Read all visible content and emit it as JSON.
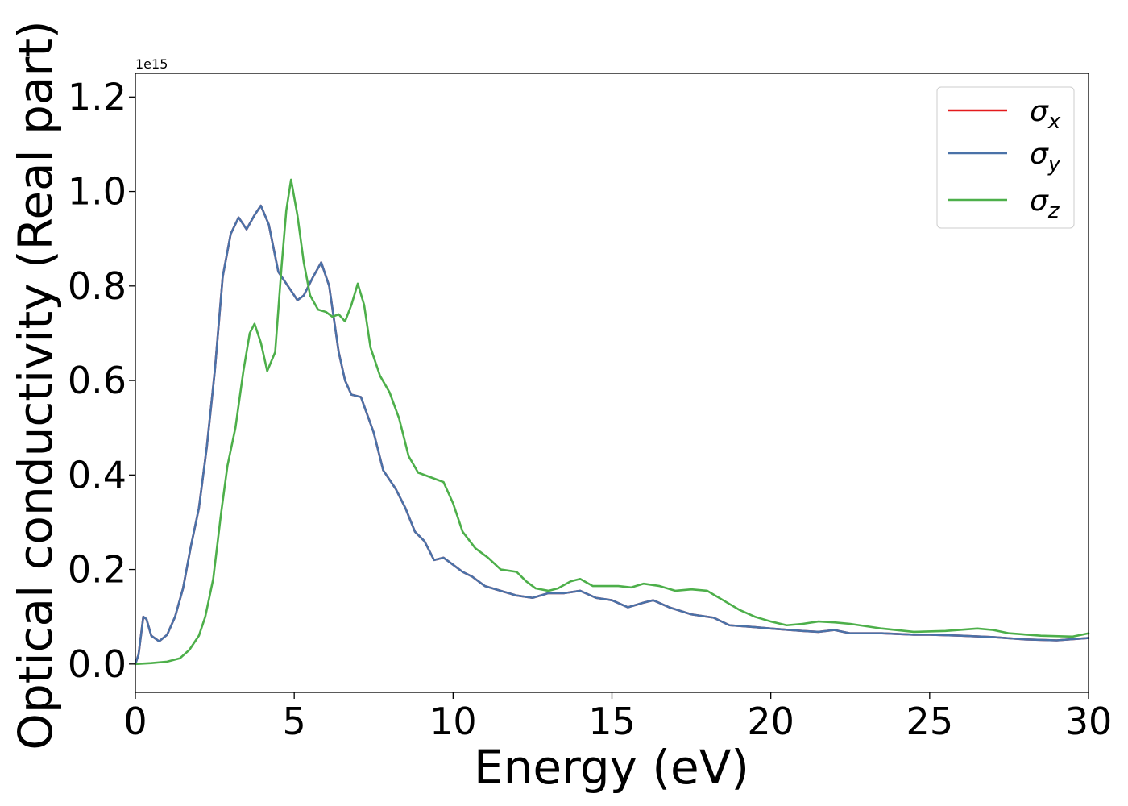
{
  "chart_data": {
    "type": "line",
    "xlabel": "Energy (eV)",
    "ylabel": "Optical conductivity (Real part)",
    "y_offset_label": "1e15",
    "xlim": [
      0,
      30
    ],
    "ylim": [
      -0.06,
      1.25
    ],
    "x_ticks": [
      0,
      5,
      10,
      15,
      20,
      25,
      30
    ],
    "x_tick_labels": [
      "0",
      "5",
      "10",
      "15",
      "20",
      "25",
      "30"
    ],
    "y_ticks": [
      0.0,
      0.2,
      0.4,
      0.6,
      0.8,
      1.0,
      1.2
    ],
    "y_tick_labels": [
      "0.0",
      "0.2",
      "0.4",
      "0.6",
      "0.8",
      "1.0",
      "1.2"
    ],
    "grid": false,
    "legend_position": "top-right",
    "series": [
      {
        "name": "σ",
        "subscript": "x",
        "color": "#e41a1c",
        "points": [
          [
            0,
            0
          ],
          [
            0.1,
            0.02
          ],
          [
            0.25,
            0.1
          ],
          [
            0.35,
            0.095
          ],
          [
            0.5,
            0.06
          ],
          [
            0.75,
            0.048
          ],
          [
            1.0,
            0.062
          ],
          [
            1.25,
            0.1
          ],
          [
            1.5,
            0.16
          ],
          [
            1.75,
            0.25
          ],
          [
            2.0,
            0.33
          ],
          [
            2.25,
            0.46
          ],
          [
            2.5,
            0.62
          ],
          [
            2.75,
            0.82
          ],
          [
            3.0,
            0.91
          ],
          [
            3.25,
            0.945
          ],
          [
            3.5,
            0.92
          ],
          [
            3.75,
            0.95
          ],
          [
            3.95,
            0.97
          ],
          [
            4.2,
            0.93
          ],
          [
            4.5,
            0.83
          ],
          [
            4.8,
            0.8
          ],
          [
            5.1,
            0.77
          ],
          [
            5.3,
            0.78
          ],
          [
            5.6,
            0.82
          ],
          [
            5.85,
            0.85
          ],
          [
            6.1,
            0.8
          ],
          [
            6.4,
            0.66
          ],
          [
            6.6,
            0.6
          ],
          [
            6.8,
            0.57
          ],
          [
            7.1,
            0.565
          ],
          [
            7.5,
            0.49
          ],
          [
            7.8,
            0.41
          ],
          [
            8.2,
            0.37
          ],
          [
            8.5,
            0.33
          ],
          [
            8.8,
            0.28
          ],
          [
            9.1,
            0.26
          ],
          [
            9.4,
            0.22
          ],
          [
            9.7,
            0.225
          ],
          [
            10.0,
            0.21
          ],
          [
            10.3,
            0.195
          ],
          [
            10.6,
            0.185
          ],
          [
            11.0,
            0.165
          ],
          [
            11.5,
            0.155
          ],
          [
            12.0,
            0.145
          ],
          [
            12.5,
            0.14
          ],
          [
            13.0,
            0.15
          ],
          [
            13.5,
            0.15
          ],
          [
            14.0,
            0.155
          ],
          [
            14.5,
            0.14
          ],
          [
            15.0,
            0.135
          ],
          [
            15.5,
            0.12
          ],
          [
            16.0,
            0.13
          ],
          [
            16.3,
            0.135
          ],
          [
            16.8,
            0.12
          ],
          [
            17.5,
            0.105
          ],
          [
            18.2,
            0.098
          ],
          [
            18.7,
            0.082
          ],
          [
            19.5,
            0.078
          ],
          [
            20.0,
            0.075
          ],
          [
            21.0,
            0.07
          ],
          [
            21.5,
            0.068
          ],
          [
            22.0,
            0.072
          ],
          [
            22.5,
            0.065
          ],
          [
            23.5,
            0.065
          ],
          [
            24.5,
            0.062
          ],
          [
            25.0,
            0.062
          ],
          [
            26.0,
            0.06
          ],
          [
            27.0,
            0.057
          ],
          [
            28.0,
            0.052
          ],
          [
            29.0,
            0.05
          ],
          [
            30.0,
            0.055
          ]
        ]
      },
      {
        "name": "σ",
        "subscript": "y",
        "color": "#4a72a8",
        "points": [
          [
            0,
            0
          ],
          [
            0.1,
            0.02
          ],
          [
            0.25,
            0.1
          ],
          [
            0.35,
            0.095
          ],
          [
            0.5,
            0.06
          ],
          [
            0.75,
            0.048
          ],
          [
            1.0,
            0.062
          ],
          [
            1.25,
            0.1
          ],
          [
            1.5,
            0.16
          ],
          [
            1.75,
            0.25
          ],
          [
            2.0,
            0.33
          ],
          [
            2.25,
            0.46
          ],
          [
            2.5,
            0.62
          ],
          [
            2.75,
            0.82
          ],
          [
            3.0,
            0.91
          ],
          [
            3.25,
            0.945
          ],
          [
            3.5,
            0.92
          ],
          [
            3.75,
            0.95
          ],
          [
            3.95,
            0.97
          ],
          [
            4.2,
            0.93
          ],
          [
            4.5,
            0.83
          ],
          [
            4.8,
            0.8
          ],
          [
            5.1,
            0.77
          ],
          [
            5.3,
            0.78
          ],
          [
            5.6,
            0.82
          ],
          [
            5.85,
            0.85
          ],
          [
            6.1,
            0.8
          ],
          [
            6.4,
            0.66
          ],
          [
            6.6,
            0.6
          ],
          [
            6.8,
            0.57
          ],
          [
            7.1,
            0.565
          ],
          [
            7.5,
            0.49
          ],
          [
            7.8,
            0.41
          ],
          [
            8.2,
            0.37
          ],
          [
            8.5,
            0.33
          ],
          [
            8.8,
            0.28
          ],
          [
            9.1,
            0.26
          ],
          [
            9.4,
            0.22
          ],
          [
            9.7,
            0.225
          ],
          [
            10.0,
            0.21
          ],
          [
            10.3,
            0.195
          ],
          [
            10.6,
            0.185
          ],
          [
            11.0,
            0.165
          ],
          [
            11.5,
            0.155
          ],
          [
            12.0,
            0.145
          ],
          [
            12.5,
            0.14
          ],
          [
            13.0,
            0.15
          ],
          [
            13.5,
            0.15
          ],
          [
            14.0,
            0.155
          ],
          [
            14.5,
            0.14
          ],
          [
            15.0,
            0.135
          ],
          [
            15.5,
            0.12
          ],
          [
            16.0,
            0.13
          ],
          [
            16.3,
            0.135
          ],
          [
            16.8,
            0.12
          ],
          [
            17.5,
            0.105
          ],
          [
            18.2,
            0.098
          ],
          [
            18.7,
            0.082
          ],
          [
            19.5,
            0.078
          ],
          [
            20.0,
            0.075
          ],
          [
            21.0,
            0.07
          ],
          [
            21.5,
            0.068
          ],
          [
            22.0,
            0.072
          ],
          [
            22.5,
            0.065
          ],
          [
            23.5,
            0.065
          ],
          [
            24.5,
            0.062
          ],
          [
            25.0,
            0.062
          ],
          [
            26.0,
            0.06
          ],
          [
            27.0,
            0.057
          ],
          [
            28.0,
            0.052
          ],
          [
            29.0,
            0.05
          ],
          [
            30.0,
            0.055
          ]
        ]
      },
      {
        "name": "σ",
        "subscript": "z",
        "color": "#4daf4a",
        "points": [
          [
            0,
            0
          ],
          [
            0.5,
            0.002
          ],
          [
            1.0,
            0.005
          ],
          [
            1.4,
            0.012
          ],
          [
            1.7,
            0.03
          ],
          [
            2.0,
            0.06
          ],
          [
            2.2,
            0.1
          ],
          [
            2.45,
            0.18
          ],
          [
            2.7,
            0.32
          ],
          [
            2.9,
            0.42
          ],
          [
            3.15,
            0.5
          ],
          [
            3.4,
            0.62
          ],
          [
            3.6,
            0.7
          ],
          [
            3.75,
            0.72
          ],
          [
            3.95,
            0.68
          ],
          [
            4.15,
            0.62
          ],
          [
            4.4,
            0.66
          ],
          [
            4.6,
            0.84
          ],
          [
            4.75,
            0.96
          ],
          [
            4.9,
            1.025
          ],
          [
            5.1,
            0.95
          ],
          [
            5.3,
            0.85
          ],
          [
            5.5,
            0.78
          ],
          [
            5.75,
            0.75
          ],
          [
            6.0,
            0.745
          ],
          [
            6.2,
            0.735
          ],
          [
            6.4,
            0.74
          ],
          [
            6.6,
            0.725
          ],
          [
            6.8,
            0.76
          ],
          [
            7.0,
            0.805
          ],
          [
            7.2,
            0.76
          ],
          [
            7.4,
            0.67
          ],
          [
            7.7,
            0.61
          ],
          [
            8.0,
            0.575
          ],
          [
            8.3,
            0.52
          ],
          [
            8.6,
            0.44
          ],
          [
            8.9,
            0.405
          ],
          [
            9.3,
            0.395
          ],
          [
            9.7,
            0.385
          ],
          [
            10.0,
            0.34
          ],
          [
            10.3,
            0.28
          ],
          [
            10.7,
            0.245
          ],
          [
            11.1,
            0.225
          ],
          [
            11.5,
            0.2
          ],
          [
            12.0,
            0.195
          ],
          [
            12.3,
            0.175
          ],
          [
            12.6,
            0.16
          ],
          [
            13.0,
            0.155
          ],
          [
            13.3,
            0.16
          ],
          [
            13.7,
            0.175
          ],
          [
            14.0,
            0.18
          ],
          [
            14.4,
            0.165
          ],
          [
            14.8,
            0.165
          ],
          [
            15.2,
            0.165
          ],
          [
            15.6,
            0.162
          ],
          [
            16.0,
            0.17
          ],
          [
            16.5,
            0.165
          ],
          [
            17.0,
            0.155
          ],
          [
            17.5,
            0.158
          ],
          [
            18.0,
            0.155
          ],
          [
            18.5,
            0.135
          ],
          [
            19.0,
            0.115
          ],
          [
            19.5,
            0.1
          ],
          [
            20.0,
            0.09
          ],
          [
            20.5,
            0.082
          ],
          [
            21.0,
            0.085
          ],
          [
            21.5,
            0.09
          ],
          [
            22.0,
            0.088
          ],
          [
            22.5,
            0.085
          ],
          [
            23.5,
            0.075
          ],
          [
            24.5,
            0.068
          ],
          [
            25.5,
            0.07
          ],
          [
            26.5,
            0.075
          ],
          [
            27.0,
            0.072
          ],
          [
            27.5,
            0.065
          ],
          [
            28.5,
            0.06
          ],
          [
            29.5,
            0.058
          ],
          [
            30.0,
            0.065
          ]
        ]
      }
    ]
  }
}
